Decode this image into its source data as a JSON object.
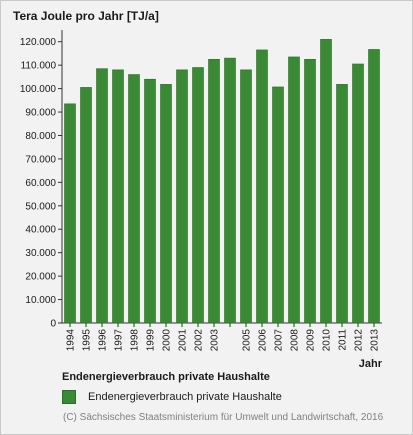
{
  "chart_data": {
    "type": "bar",
    "ylabel": "Tera Joule pro Jahr [TJ/a]",
    "xlabel": "Jahr",
    "categories": [
      "1994",
      "1995",
      "1996",
      "1997",
      "1998",
      "1999",
      "2000",
      "2001",
      "2002",
      "2003",
      "",
      "2005",
      "2006",
      "2007",
      "2008",
      "2009",
      "2010",
      "2011",
      "2012",
      "2013"
    ],
    "series": [
      {
        "name": "Endenergieverbrauch private Haushalte",
        "values": [
          93500,
          100500,
          108500,
          108000,
          106000,
          104000,
          101800,
          108000,
          109000,
          112500,
          113000,
          108000,
          116500,
          100700,
          113500,
          112500,
          121000,
          101800,
          110500,
          116700
        ]
      }
    ],
    "ylim": [
      0,
      125000
    ],
    "yticks": [
      "0",
      "10.000",
      "20.000",
      "30.000",
      "40.000",
      "50.000",
      "60.000",
      "70.000",
      "80.000",
      "90.000",
      "100.000",
      "110.000",
      "120.000"
    ],
    "ytick_values": [
      0,
      10000,
      20000,
      30000,
      40000,
      50000,
      60000,
      70000,
      80000,
      90000,
      100000,
      110000,
      120000
    ],
    "grid": false,
    "legend": "bottom-left",
    "colors": {
      "bar": "#3a8a35",
      "bar_edge": "#2c6e28",
      "axis": "#333333",
      "background": "#f2f2f2"
    }
  },
  "legend_title": "Endenergieverbrauch private Haushalte",
  "copyright": "(C) Sächsisches Staatsministerium für Umwelt und Landwirtschaft, 2016"
}
